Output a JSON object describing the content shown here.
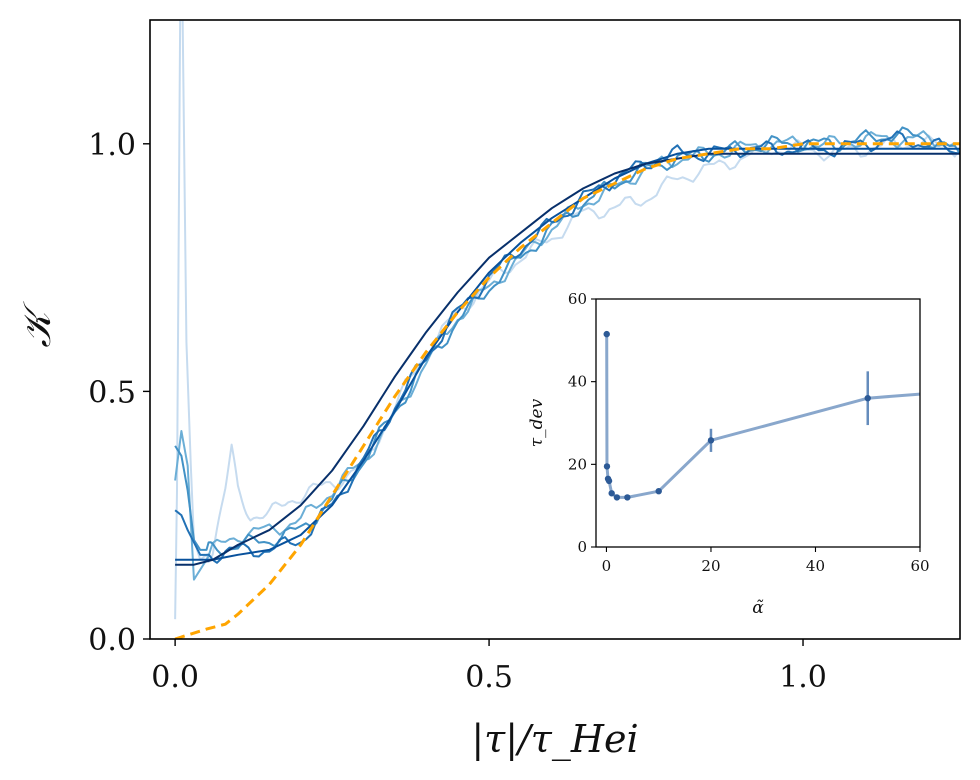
{
  "chart_data": [
    {
      "type": "line",
      "xlabel": "|τ|/τ_Hei",
      "ylabel": "𝒦",
      "xlim": [
        -0.04,
        1.25
      ],
      "ylim": [
        0,
        1.25
      ],
      "xticks": [
        "0.0",
        "0.5",
        "1.0"
      ],
      "xtick_values": [
        0,
        0.5,
        1.0
      ],
      "yticks": [
        "0.0",
        "0.5",
        "1.0"
      ],
      "ytick_values": [
        0,
        0.5,
        1.0
      ],
      "grid": false,
      "series": [
        {
          "color": "#c6dbef",
          "noise": true,
          "points": [
            [
              0,
              0.04
            ],
            [
              0.003,
              0.3
            ],
            [
              0.008,
              1.25
            ],
            [
              0.012,
              1.25
            ],
            [
              0.018,
              0.6
            ],
            [
              0.025,
              0.35
            ],
            [
              0.03,
              0.2
            ],
            [
              0.04,
              0.16
            ],
            [
              0.06,
              0.18
            ],
            [
              0.08,
              0.3
            ],
            [
              0.09,
              0.38
            ],
            [
              0.1,
              0.3
            ],
            [
              0.12,
              0.25
            ],
            [
              0.15,
              0.25
            ],
            [
              0.18,
              0.28
            ],
            [
              0.22,
              0.3
            ],
            [
              0.26,
              0.32
            ],
            [
              0.3,
              0.35
            ],
            [
              0.35,
              0.47
            ],
            [
              0.4,
              0.58
            ],
            [
              0.45,
              0.66
            ],
            [
              0.5,
              0.72
            ],
            [
              0.55,
              0.77
            ],
            [
              0.6,
              0.81
            ],
            [
              0.65,
              0.86
            ],
            [
              0.7,
              0.87
            ],
            [
              0.75,
              0.89
            ],
            [
              0.8,
              0.93
            ],
            [
              0.85,
              0.95
            ],
            [
              0.9,
              0.97
            ],
            [
              0.95,
              0.99
            ],
            [
              1.0,
              0.99
            ],
            [
              1.05,
              0.98
            ],
            [
              1.1,
              0.99
            ],
            [
              1.15,
              1.0
            ],
            [
              1.2,
              1.0
            ],
            [
              1.25,
              0.99
            ]
          ]
        },
        {
          "color": "#6baed6",
          "noise": true,
          "points": [
            [
              0,
              0.32
            ],
            [
              0.01,
              0.42
            ],
            [
              0.02,
              0.35
            ],
            [
              0.03,
              0.12
            ],
            [
              0.04,
              0.14
            ],
            [
              0.06,
              0.18
            ],
            [
              0.1,
              0.21
            ],
            [
              0.15,
              0.22
            ],
            [
              0.2,
              0.24
            ],
            [
              0.25,
              0.3
            ],
            [
              0.3,
              0.36
            ],
            [
              0.35,
              0.45
            ],
            [
              0.4,
              0.56
            ],
            [
              0.45,
              0.65
            ],
            [
              0.5,
              0.71
            ],
            [
              0.55,
              0.77
            ],
            [
              0.6,
              0.83
            ],
            [
              0.65,
              0.88
            ],
            [
              0.7,
              0.91
            ],
            [
              0.75,
              0.95
            ],
            [
              0.8,
              0.97
            ],
            [
              0.85,
              0.98
            ],
            [
              0.9,
              0.99
            ],
            [
              0.95,
              1.0
            ],
            [
              1.0,
              1.0
            ],
            [
              1.05,
              1.0
            ],
            [
              1.1,
              1.01
            ],
            [
              1.15,
              1.01
            ],
            [
              1.2,
              1.01
            ],
            [
              1.25,
              1.0
            ]
          ]
        },
        {
          "color": "#4292c6",
          "noise": true,
          "points": [
            [
              0,
              0.39
            ],
            [
              0.01,
              0.37
            ],
            [
              0.02,
              0.3
            ],
            [
              0.03,
              0.2
            ],
            [
              0.04,
              0.18
            ],
            [
              0.06,
              0.18
            ],
            [
              0.1,
              0.19
            ],
            [
              0.15,
              0.2
            ],
            [
              0.2,
              0.22
            ],
            [
              0.25,
              0.28
            ],
            [
              0.3,
              0.36
            ],
            [
              0.35,
              0.46
            ],
            [
              0.4,
              0.56
            ],
            [
              0.45,
              0.64
            ],
            [
              0.5,
              0.71
            ],
            [
              0.55,
              0.77
            ],
            [
              0.6,
              0.83
            ],
            [
              0.65,
              0.88
            ],
            [
              0.7,
              0.92
            ],
            [
              0.75,
              0.95
            ],
            [
              0.8,
              0.97
            ],
            [
              0.85,
              0.98
            ],
            [
              0.9,
              0.99
            ],
            [
              0.95,
              1.0
            ],
            [
              1.0,
              1.0
            ],
            [
              1.05,
              1.0
            ],
            [
              1.1,
              1.01
            ],
            [
              1.15,
              1.02
            ],
            [
              1.2,
              1.01
            ],
            [
              1.25,
              0.98
            ]
          ]
        },
        {
          "color": "#2171b5",
          "noise": true,
          "points": [
            [
              0,
              0.26
            ],
            [
              0.01,
              0.25
            ],
            [
              0.02,
              0.22
            ],
            [
              0.04,
              0.17
            ],
            [
              0.06,
              0.17
            ],
            [
              0.1,
              0.18
            ],
            [
              0.15,
              0.18
            ],
            [
              0.2,
              0.2
            ],
            [
              0.25,
              0.27
            ],
            [
              0.3,
              0.36
            ],
            [
              0.35,
              0.47
            ],
            [
              0.4,
              0.57
            ],
            [
              0.45,
              0.66
            ],
            [
              0.5,
              0.73
            ],
            [
              0.55,
              0.79
            ],
            [
              0.6,
              0.84
            ],
            [
              0.65,
              0.89
            ],
            [
              0.7,
              0.93
            ],
            [
              0.75,
              0.96
            ],
            [
              0.8,
              0.98
            ],
            [
              0.85,
              0.98
            ],
            [
              0.9,
              0.99
            ],
            [
              0.95,
              0.99
            ],
            [
              1.0,
              0.99
            ],
            [
              1.05,
              0.99
            ],
            [
              1.1,
              1.0
            ],
            [
              1.15,
              1.01
            ],
            [
              1.2,
              1.0
            ],
            [
              1.25,
              0.98
            ]
          ]
        },
        {
          "color": "#08519c",
          "noise": false,
          "points": [
            [
              0,
              0.16
            ],
            [
              0.03,
              0.16
            ],
            [
              0.06,
              0.16
            ],
            [
              0.1,
              0.17
            ],
            [
              0.15,
              0.18
            ],
            [
              0.2,
              0.21
            ],
            [
              0.25,
              0.27
            ],
            [
              0.3,
              0.36
            ],
            [
              0.35,
              0.46
            ],
            [
              0.4,
              0.57
            ],
            [
              0.45,
              0.66
            ],
            [
              0.5,
              0.74
            ],
            [
              0.55,
              0.8
            ],
            [
              0.6,
              0.85
            ],
            [
              0.65,
              0.89
            ],
            [
              0.7,
              0.93
            ],
            [
              0.75,
              0.96
            ],
            [
              0.8,
              0.98
            ],
            [
              0.85,
              0.99
            ],
            [
              0.9,
              0.99
            ],
            [
              0.95,
              0.99
            ],
            [
              1.0,
              0.99
            ],
            [
              1.05,
              0.99
            ],
            [
              1.1,
              0.99
            ],
            [
              1.15,
              0.99
            ],
            [
              1.2,
              0.99
            ],
            [
              1.25,
              0.99
            ]
          ]
        },
        {
          "color": "#08306b",
          "noise": false,
          "points": [
            [
              0,
              0.15
            ],
            [
              0.03,
              0.15
            ],
            [
              0.06,
              0.16
            ],
            [
              0.1,
              0.19
            ],
            [
              0.15,
              0.22
            ],
            [
              0.2,
              0.27
            ],
            [
              0.25,
              0.34
            ],
            [
              0.3,
              0.43
            ],
            [
              0.35,
              0.53
            ],
            [
              0.4,
              0.62
            ],
            [
              0.45,
              0.7
            ],
            [
              0.5,
              0.77
            ],
            [
              0.55,
              0.82
            ],
            [
              0.6,
              0.87
            ],
            [
              0.65,
              0.91
            ],
            [
              0.7,
              0.94
            ],
            [
              0.75,
              0.96
            ],
            [
              0.8,
              0.97
            ],
            [
              0.85,
              0.98
            ],
            [
              0.9,
              0.98
            ],
            [
              0.95,
              0.98
            ],
            [
              1.0,
              0.98
            ],
            [
              1.05,
              0.98
            ],
            [
              1.1,
              0.98
            ],
            [
              1.15,
              0.98
            ],
            [
              1.2,
              0.98
            ],
            [
              1.25,
              0.98
            ]
          ]
        },
        {
          "color": "#ffa500",
          "dashed": true,
          "noise": false,
          "points": [
            [
              0,
              0.0
            ],
            [
              0.05,
              0.02
            ],
            [
              0.08,
              0.03
            ],
            [
              0.1,
              0.05
            ],
            [
              0.15,
              0.11
            ],
            [
              0.2,
              0.19
            ],
            [
              0.25,
              0.29
            ],
            [
              0.3,
              0.39
            ],
            [
              0.35,
              0.49
            ],
            [
              0.4,
              0.58
            ],
            [
              0.45,
              0.66
            ],
            [
              0.5,
              0.73
            ],
            [
              0.55,
              0.79
            ],
            [
              0.6,
              0.84
            ],
            [
              0.65,
              0.89
            ],
            [
              0.7,
              0.92
            ],
            [
              0.75,
              0.95
            ],
            [
              0.8,
              0.97
            ],
            [
              0.85,
              0.98
            ],
            [
              0.9,
              0.99
            ],
            [
              0.95,
              0.99
            ],
            [
              1.0,
              1.0
            ],
            [
              1.05,
              1.0
            ],
            [
              1.1,
              1.0
            ],
            [
              1.15,
              1.0
            ],
            [
              1.2,
              1.0
            ],
            [
              1.25,
              1.0
            ]
          ]
        }
      ]
    },
    {
      "type": "line",
      "xlabel": "α̃",
      "ylabel": "τ_dev",
      "xlim": [
        -2,
        60
      ],
      "ylim": [
        0,
        60
      ],
      "xticks": [
        "0",
        "20",
        "40",
        "60"
      ],
      "xtick_values": [
        0,
        20,
        40,
        60
      ],
      "yticks": [
        "0",
        "20",
        "40",
        "60"
      ],
      "ytick_values": [
        0,
        20,
        40,
        60
      ],
      "color": "#4a78b0",
      "series": [
        {
          "points": [
            {
              "x": 0.05,
              "y": 51.5,
              "err": 0
            },
            {
              "x": 0.1,
              "y": 19.5,
              "err": 0
            },
            {
              "x": 0.3,
              "y": 16.5,
              "err": 0
            },
            {
              "x": 0.5,
              "y": 16.0,
              "err": 0
            },
            {
              "x": 1.0,
              "y": 13.0,
              "err": 0
            },
            {
              "x": 2.0,
              "y": 12.0,
              "err": 0
            },
            {
              "x": 4.0,
              "y": 12.0,
              "err": 0
            },
            {
              "x": 10.0,
              "y": 13.5,
              "err": 0
            },
            {
              "x": 20.0,
              "y": 25.8,
              "err": 2.8
            },
            {
              "x": 50.0,
              "y": 36.0,
              "err": 6.5
            },
            {
              "x": 60.0,
              "y": 37.0,
              "err": 0
            }
          ]
        }
      ]
    }
  ]
}
